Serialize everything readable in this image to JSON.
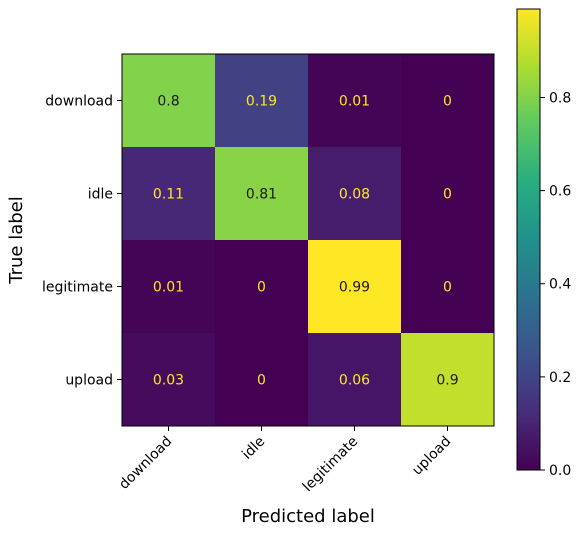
{
  "chart_data": {
    "type": "heatmap",
    "title": "",
    "xlabel": "Predicted label",
    "ylabel": "True label",
    "x_categories": [
      "download",
      "idle",
      "legitimate",
      "upload"
    ],
    "y_categories": [
      "download",
      "idle",
      "legitimate",
      "upload"
    ],
    "values": [
      [
        0.8,
        0.19,
        0.01,
        0
      ],
      [
        0.11,
        0.81,
        0.08,
        0
      ],
      [
        0.01,
        0,
        0.99,
        0
      ],
      [
        0.03,
        0,
        0.06,
        0.9
      ]
    ],
    "value_labels": [
      [
        "0.8",
        "0.19",
        "0.01",
        "0"
      ],
      [
        "0.11",
        "0.81",
        "0.08",
        "0"
      ],
      [
        "0.01",
        "0",
        "0.99",
        "0"
      ],
      [
        "0.03",
        "0",
        "0.06",
        "0.9"
      ]
    ],
    "colormap": "viridis",
    "colorbar": {
      "range": [
        0,
        0.99
      ],
      "ticks": [
        0.0,
        0.2,
        0.4,
        0.6,
        0.8
      ],
      "tick_labels": [
        "0.0",
        "0.2",
        "0.4",
        "0.6",
        "0.8"
      ]
    },
    "text_colors": {
      "on_dark": "#fde725",
      "on_light": "#1a1a1a"
    },
    "grid": false,
    "legend": "colorbar-right"
  }
}
